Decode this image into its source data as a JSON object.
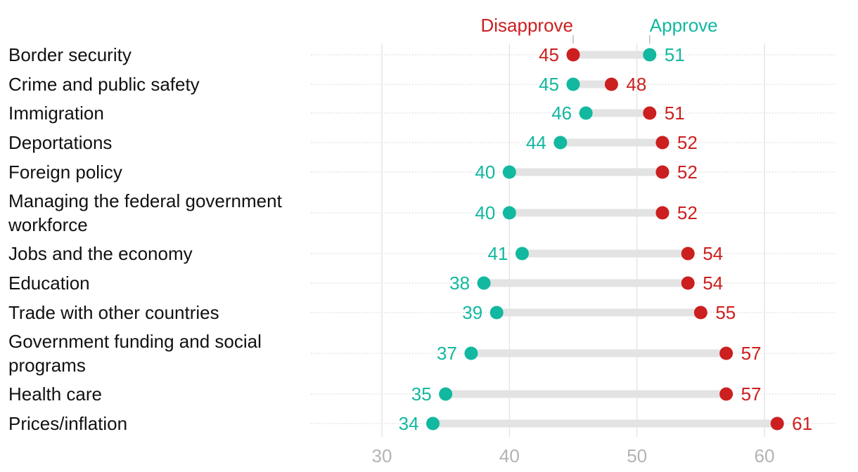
{
  "chart_data": {
    "type": "dumbbell",
    "title": "",
    "xlabel": "",
    "ylabel": "",
    "xlim": [
      25,
      65
    ],
    "x_ticks": [
      30,
      40,
      50,
      60
    ],
    "grid": true,
    "legend": {
      "position": "top",
      "entries": [
        {
          "name": "Disapprove",
          "color": "#cc1f1f",
          "value": 45
        },
        {
          "name": "Approve",
          "color": "#12b8a0",
          "value": 51
        }
      ]
    },
    "categories": [
      "Border security",
      "Crime and public safety",
      "Immigration",
      "Deportations",
      "Foreign policy",
      "Managing the federal government workforce",
      "Jobs and the economy",
      "Education",
      "Trade with other countries",
      "Government funding and social programs",
      "Health care",
      "Prices/inflation"
    ],
    "series": [
      {
        "name": "Approve",
        "color": "#12b8a0",
        "values": [
          51,
          45,
          46,
          44,
          40,
          40,
          41,
          38,
          39,
          37,
          35,
          34
        ]
      },
      {
        "name": "Disapprove",
        "color": "#cc1f1f",
        "values": [
          45,
          48,
          51,
          52,
          52,
          52,
          54,
          54,
          55,
          57,
          57,
          61
        ]
      }
    ]
  }
}
